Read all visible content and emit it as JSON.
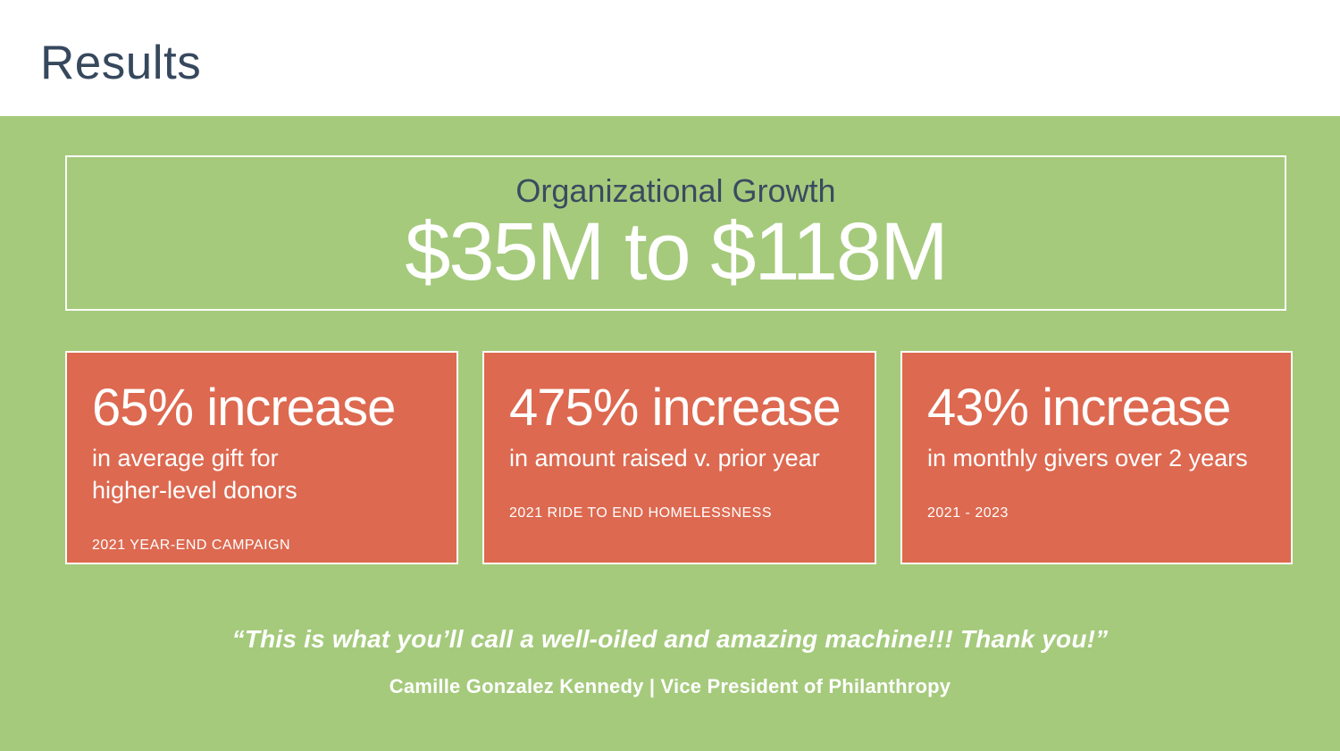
{
  "slide": {
    "title": "Results"
  },
  "growth_box": {
    "label": "Organizational Growth",
    "value": "$35M to $118M"
  },
  "stat_cards": [
    {
      "headline": "65% increase",
      "description": "in average gift for\nhigher-level donors",
      "caption": "2021 YEAR-END CAMPAIGN"
    },
    {
      "headline": "475% increase",
      "description": "in amount raised v. prior year",
      "caption": "2021 RIDE TO END HOMELESSNESS"
    },
    {
      "headline": "43% increase",
      "description": "in monthly givers over 2 years",
      "caption": "2021 - 2023"
    }
  ],
  "quote": {
    "text": "“This is what you’ll call a well-oiled and amazing machine!!! Thank you!”",
    "attribution": "Camille Gonzalez Kennedy | Vice President of Philanthropy"
  },
  "colors": {
    "background_green": "#a5ca7c",
    "card_orange": "#dd6950",
    "heading_navy": "#3a4b60",
    "text_white": "#ffffff",
    "border_white": "#fcfdf8"
  }
}
